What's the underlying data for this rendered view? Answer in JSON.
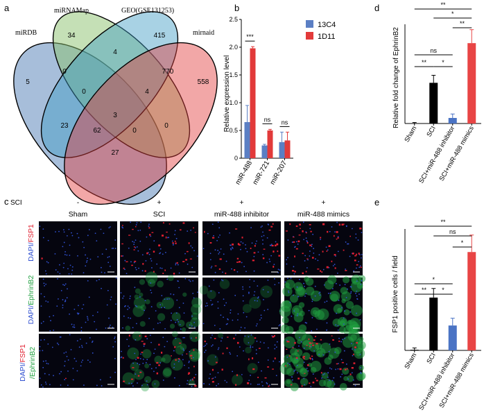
{
  "panel_labels": {
    "a": "a",
    "b": "b",
    "c": "c",
    "d": "d",
    "e": "e"
  },
  "venn": {
    "sets": [
      "miRDB",
      "miRNAMap",
      "GEO(GSE131253)",
      "mirnaid"
    ],
    "colors": [
      "#3b6fae",
      "#8cc26e",
      "#3e9bc4",
      "#e33b3b"
    ],
    "counts": {
      "only_miRDB": "5",
      "only_miRNAMap": "34",
      "only_GEO": "415",
      "only_mirnaid": "558",
      "miRDB_miRNAMap": "0",
      "miRNAMap_GEO": "4",
      "GEO_mirnaid": "770",
      "miRDB_miRNAMap_GEO": "0",
      "miRNAMap_GEO_mirnaid": "4",
      "miRDB_GEO": "23",
      "all_four": "3",
      "miRNAMap_mirnaid": "0",
      "miRDB_GEO_mirnaid": "62",
      "miRDB_miRNAMap_mirnaid": "0",
      "miRDB_mirnaid": "27"
    }
  },
  "chart_data": [
    {
      "id": "b",
      "type": "bar",
      "ylabel": "Relative expression level",
      "ylim": [
        0,
        2.5
      ],
      "yticks": [
        "0",
        "0.5",
        "1.0",
        "1.5",
        "2.0",
        "2.5"
      ],
      "categories": [
        "miR-488",
        "miR-721",
        "miR-207"
      ],
      "series": [
        {
          "name": "13C4",
          "color": "#5b7fc4",
          "values": [
            0.65,
            0.23,
            0.29
          ],
          "errors": [
            0.3,
            0.02,
            0.18
          ]
        },
        {
          "name": "1D11",
          "color": "#e23a3a",
          "values": [
            1.98,
            0.5,
            0.32
          ],
          "errors": [
            0.03,
            0.02,
            0.15
          ]
        }
      ],
      "significance": [
        "***",
        "ns",
        "ns"
      ]
    },
    {
      "id": "d",
      "type": "bar",
      "ylabel": "Relative fold change of EphrinB2",
      "ylim": [
        0,
        500
      ],
      "categories": [
        "Sham",
        "SCI",
        "SCI+miR-488 inhibitor",
        "SCI+miR-488 mimics"
      ],
      "colors": [
        "#000000",
        "#000000",
        "#4a73c4",
        "#e84545"
      ],
      "values": [
        1,
        205,
        28,
        405
      ],
      "errors": [
        4,
        38,
        20,
        68
      ],
      "brackets": [
        {
          "from": 0,
          "to": 3,
          "label": "**"
        },
        {
          "from": 1,
          "to": 3,
          "label": "*"
        },
        {
          "from": 2,
          "to": 3,
          "label": "**"
        },
        {
          "from": 0,
          "to": 2,
          "label": "ns"
        },
        {
          "from": 0,
          "to": 1,
          "label": "**"
        },
        {
          "from": 1,
          "to": 2,
          "label": "*"
        }
      ]
    },
    {
      "id": "e",
      "type": "bar",
      "ylabel": "FSP1 positive cells / field",
      "ylim": [
        0,
        200
      ],
      "categories": [
        "Sham",
        "SCI",
        "SCI+miR-488 inhibitor",
        "SCI+miR-488 mimics"
      ],
      "colors": [
        "#000000",
        "#000000",
        "#4a73c4",
        "#e84545"
      ],
      "values": [
        1,
        87,
        41,
        162
      ],
      "errors": [
        3,
        15,
        12,
        28
      ],
      "brackets": [
        {
          "from": 0,
          "to": 3,
          "label": "**"
        },
        {
          "from": 1,
          "to": 3,
          "label": "ns"
        },
        {
          "from": 2,
          "to": 3,
          "label": "*"
        },
        {
          "from": 0,
          "to": 2,
          "label": "*"
        },
        {
          "from": 0,
          "to": 1,
          "label": "**"
        },
        {
          "from": 1,
          "to": 2,
          "label": "*"
        }
      ]
    }
  ],
  "micrographs": {
    "sci_label": "SCI",
    "columns": [
      {
        "sci": "-",
        "title": "Sham"
      },
      {
        "sci": "+",
        "title": "SCI"
      },
      {
        "sci": "+",
        "title": "miR-488 inhibitor"
      },
      {
        "sci": "+",
        "title": "miR-488 mimics"
      }
    ],
    "row_labels": [
      {
        "dapi": "DAPI/",
        "marker": "FSP1",
        "marker2": ""
      },
      {
        "dapi": "DAPI/",
        "marker": "EphrinB2",
        "marker2": ""
      },
      {
        "dapi": "DAPI/",
        "marker": "FSP1",
        "marker2": "/EphrinB2"
      }
    ],
    "stain_colors": {
      "dapi": "#3050d0",
      "fsp1": "#e02030",
      "ephrinb2": "#20a040"
    },
    "red_level": [
      [
        0.02,
        0.6,
        0.45,
        0.8
      ],
      [
        0,
        0,
        0,
        0
      ],
      [
        0.02,
        0.5,
        0.4,
        0.7
      ]
    ],
    "green_level": [
      [
        0,
        0,
        0,
        0
      ],
      [
        0.03,
        0.45,
        0.1,
        0.95
      ],
      [
        0.03,
        0.4,
        0.1,
        0.9
      ]
    ]
  }
}
